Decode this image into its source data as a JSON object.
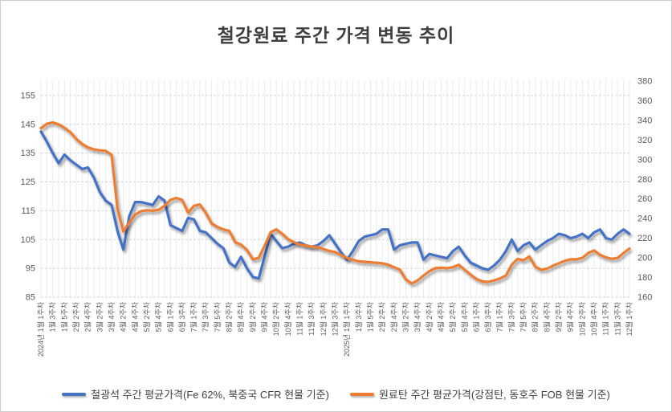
{
  "title": "철강원료 주간 가격 변동 추이",
  "chart_data": {
    "type": "line",
    "x_tick_labels": [
      "2024년 1월 1주차",
      "1월 3주차",
      "1월 5주차",
      "2월 2주차",
      "2월 4주차",
      "3월 2주차",
      "3월 4주차",
      "4월 2주차",
      "4월 4주차",
      "5월 2주차",
      "5월 4주차",
      "6월 1주차",
      "6월 3주차",
      "7월 1주차",
      "7월 3주차",
      "7월 5주차",
      "8월 2주차",
      "8월 4주차",
      "9월 2주차",
      "9월 4주차",
      "10월 2주차",
      "10월 4주차",
      "11월 1주차",
      "11월 3주차",
      "12월 1주차",
      "12월 3주차",
      "2025년 1월 1주차",
      "1월 3주차",
      "1월 5주차",
      "2월 2주차",
      "2월 4주차",
      "3월 2주차",
      "3월 4주차",
      "4월 2주차",
      "4월 4주차",
      "5월 2주차",
      "5월 4주차",
      "6월 1주차",
      "6월 3주차",
      "7월 1주차",
      "7월 3주차",
      "7월 5주차",
      "8월 2주차",
      "8월 4주차",
      "9월 2주차",
      "9월 4주차",
      "10월 2주차",
      "10월 4주차",
      "11월 1주차",
      "11월 3주차",
      "12월 1주차"
    ],
    "x_label_every_n_points": 2,
    "left_axis": {
      "min": 85,
      "max": 160,
      "ticks": [
        85,
        95,
        105,
        115,
        125,
        135,
        145,
        155
      ]
    },
    "right_axis": {
      "min": 160,
      "max": 380,
      "ticks": [
        160,
        180,
        200,
        220,
        240,
        260,
        280,
        300,
        320,
        340,
        360,
        380
      ]
    },
    "grid": {
      "horizontal": "dashed",
      "vertical": "light solid per week"
    },
    "legend_position": "bottom",
    "series": [
      {
        "name": "철광석 주간 평균가격(Fe 62%, 북중국 CFR 현물 기준)",
        "color": "#4472C4",
        "axis": "left",
        "values": [
          142.5,
          139,
          135,
          131.5,
          134.5,
          132.5,
          131,
          129.5,
          130,
          126.5,
          121.5,
          118.5,
          117,
          108,
          101.5,
          113,
          118,
          118,
          117.5,
          117,
          120,
          118.5,
          110,
          109,
          108,
          112.5,
          112,
          108,
          107.5,
          105.5,
          103.5,
          102,
          97,
          95.5,
          99,
          95,
          92,
          91.5,
          99,
          107,
          104.5,
          102,
          102.5,
          103.5,
          104,
          103,
          102.5,
          103,
          104.5,
          106.5,
          103.5,
          100.5,
          98,
          101,
          104.5,
          106,
          106.5,
          107,
          108.5,
          108.5,
          101.5,
          103,
          103.5,
          104,
          104,
          98,
          100,
          99.5,
          99,
          98.5,
          101,
          102.5,
          99.5,
          97,
          96,
          95,
          94.5,
          96,
          98,
          101,
          105,
          101,
          103,
          104,
          101.5,
          103,
          104.5,
          105.5,
          107,
          106.5,
          105.5,
          106,
          107,
          105.5,
          107.5,
          108.5,
          105.5,
          105,
          107,
          108.5,
          107
        ]
      },
      {
        "name": "원료탄 주간 평균가격(강점탄, 동호주 FOB 현물 기준)",
        "color": "#ED7D31",
        "axis": "right",
        "values": [
          332,
          336.5,
          338,
          336,
          332.5,
          328,
          321,
          316,
          312.5,
          310.5,
          309.5,
          309,
          305,
          250,
          227,
          236,
          244,
          247.5,
          248.5,
          248,
          249,
          253,
          259,
          261,
          259,
          246,
          253,
          254.5,
          246,
          235,
          231.5,
          229,
          227.5,
          216,
          213.5,
          208,
          198.5,
          200,
          212,
          226,
          229,
          224.5,
          219,
          216,
          213.5,
          212.5,
          211.5,
          211,
          209,
          207,
          206,
          203,
          200,
          198,
          196.5,
          196,
          195.5,
          195,
          194.5,
          193,
          190.5,
          188,
          178,
          174,
          177,
          182,
          186.5,
          189.5,
          190,
          189.5,
          190.5,
          193,
          188,
          183,
          178.5,
          176,
          175.5,
          177,
          179,
          182,
          193,
          199,
          197.5,
          201.5,
          191,
          188,
          189,
          192,
          194.5,
          197,
          198.5,
          198.5,
          200,
          205,
          207.5,
          203,
          200.5,
          199,
          200,
          205,
          209.5
        ]
      }
    ]
  }
}
